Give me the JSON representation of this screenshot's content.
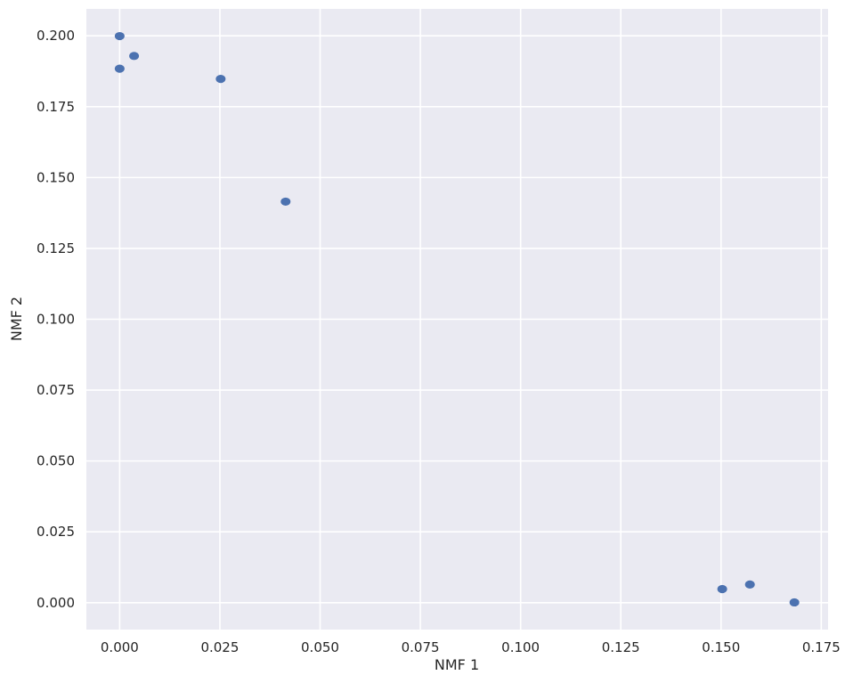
{
  "chart_data": {
    "type": "scatter",
    "xlabel": "NMF 1",
    "ylabel": "NMF 2",
    "xlim": [
      -0.0083,
      0.1767
    ],
    "ylim": [
      -0.0095,
      0.2095
    ],
    "xticks": [
      0.0,
      0.025,
      0.05,
      0.075,
      0.1,
      0.125,
      0.15,
      0.175
    ],
    "xtick_labels": [
      "0.000",
      "0.025",
      "0.050",
      "0.075",
      "0.100",
      "0.125",
      "0.150",
      "0.175"
    ],
    "yticks": [
      0.0,
      0.025,
      0.05,
      0.075,
      0.1,
      0.125,
      0.15,
      0.175,
      0.2
    ],
    "ytick_labels": [
      "0.000",
      "0.025",
      "0.050",
      "0.075",
      "0.100",
      "0.125",
      "0.150",
      "0.175",
      "0.200"
    ],
    "grid": true,
    "series": [
      {
        "color": "#4c72b0",
        "points": [
          {
            "x": 0.0,
            "y": 0.1999
          },
          {
            "x": 0.0,
            "y": 0.1884
          },
          {
            "x": 0.0036,
            "y": 0.1929
          },
          {
            "x": 0.0252,
            "y": 0.1848
          },
          {
            "x": 0.0414,
            "y": 0.1415
          },
          {
            "x": 0.1503,
            "y": 0.0048
          },
          {
            "x": 0.1572,
            "y": 0.0064
          },
          {
            "x": 0.1683,
            "y": 0.0001
          }
        ]
      }
    ],
    "style": {
      "plot_background": "#eaeaf2",
      "grid_color": "#ffffff",
      "marker_color": "#4c72b0"
    }
  }
}
